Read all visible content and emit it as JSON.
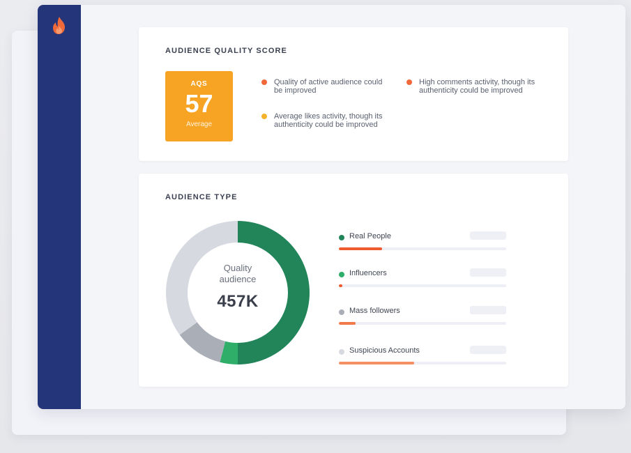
{
  "colors": {
    "sidebar": "#24357a",
    "accent_orange": "#f0693a",
    "aqs_badge": "#f7a425",
    "insight_yellow": "#f5b32b",
    "green_dark": "#22855a",
    "green_light": "#2fae6a",
    "gray_mass": "#a9aeb7",
    "gray_suspicious": "#d6d9e0",
    "bar_real": "#ee5b2f",
    "bar_influencers": "#ee5b2f",
    "bar_mass": "#f2794b",
    "bar_suspicious": "#f58f62"
  },
  "sidebar": {
    "logo_icon": "flame-icon"
  },
  "aqs_panel": {
    "title": "AUDIENCE QUALITY SCORE",
    "badge": {
      "label": "AQS",
      "value": "57",
      "grade": "Average"
    },
    "insights": [
      {
        "text": "Quality of active audience could be improved",
        "dot_color": "#f0693a"
      },
      {
        "text": "Average likes activity, though its authenticity could be improved",
        "dot_color": "#f5b32b"
      },
      {
        "text": "High comments activity, though its authenticity could be improved",
        "dot_color": "#f0693a"
      }
    ]
  },
  "audience_type_panel": {
    "title": "AUDIENCE TYPE",
    "center_label": "Quality audience",
    "center_value": "457K",
    "segments": [
      {
        "name": "Real People",
        "share": 0.5,
        "color": "#22855a",
        "bar_fraction": 0.26,
        "bar_color": "#ee5b2f"
      },
      {
        "name": "Influencers",
        "share": 0.04,
        "color": "#2fae6a",
        "bar_fraction": 0.02,
        "bar_color": "#ee5b2f"
      },
      {
        "name": "Mass followers",
        "share": 0.11,
        "color": "#a9aeb7",
        "bar_fraction": 0.1,
        "bar_color": "#f2794b"
      },
      {
        "name": "Suspicious Accounts",
        "share": 0.35,
        "color": "#d6d9e0",
        "bar_fraction": 0.45,
        "bar_color": "#f58f62"
      }
    ]
  }
}
